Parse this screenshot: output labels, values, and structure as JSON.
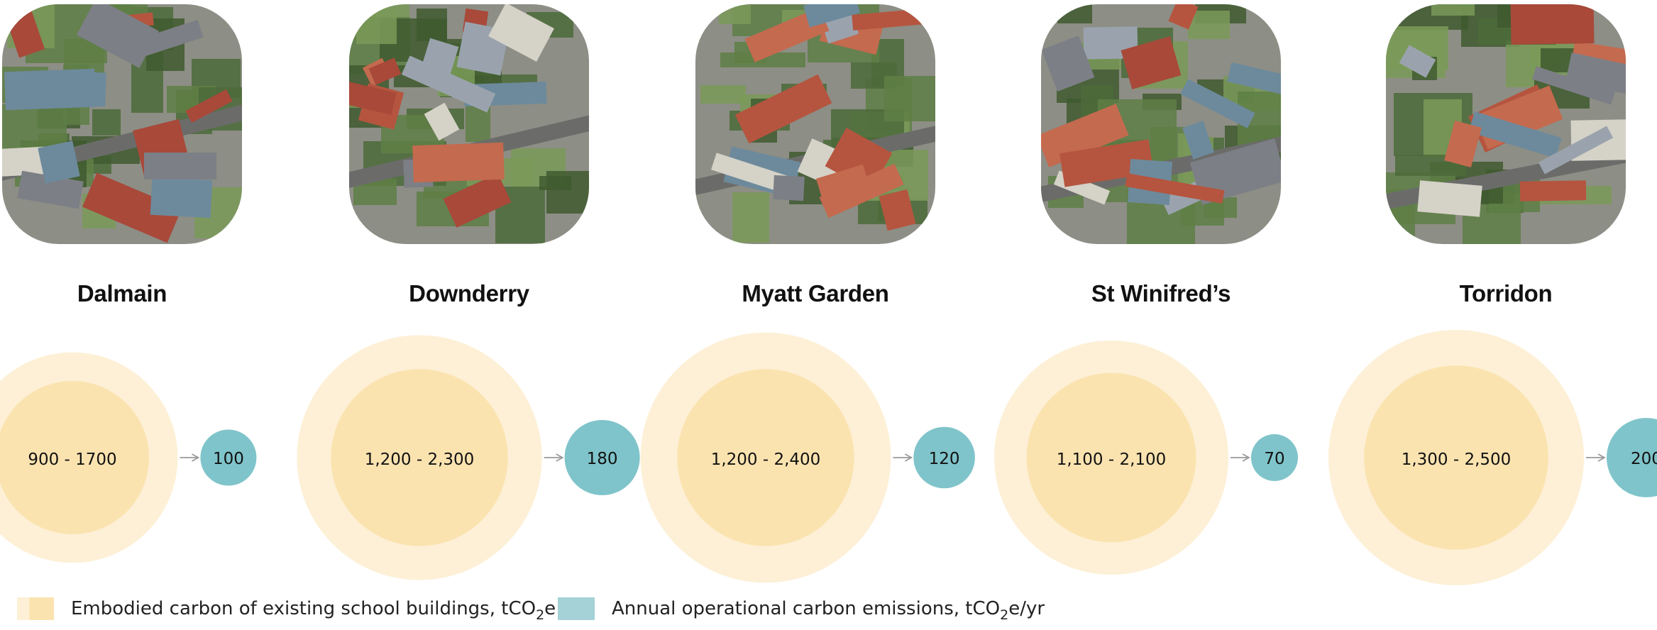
{
  "chart_data": {
    "type": "bubble",
    "schools": [
      {
        "name": "Dalmain",
        "embodied_label": "900 - 1700",
        "embodied_low": 900,
        "embodied_high": 1700,
        "operational_label": "100",
        "operational": 100
      },
      {
        "name": "Downderry",
        "embodied_label": "1,200 - 2,300",
        "embodied_low": 1200,
        "embodied_high": 2300,
        "operational_label": "180",
        "operational": 180
      },
      {
        "name": "Myatt Garden",
        "embodied_label": "1,200 - 2,400",
        "embodied_low": 1200,
        "embodied_high": 2400,
        "operational_label": "120",
        "operational": 120
      },
      {
        "name": "St Winifred’s",
        "embodied_label": "1,100 - 2,100",
        "embodied_low": 1100,
        "embodied_high": 2100,
        "operational_label": "70",
        "operational": 70
      },
      {
        "name": "Torridon",
        "embodied_label": "1,300 - 2,500",
        "embodied_low": 1300,
        "embodied_high": 2500,
        "operational_label": "200",
        "operational": 200
      }
    ],
    "legend": {
      "embodied": {
        "text": "Embodied carbon of existing school buildings, tCO",
        "sub": "2",
        "suffix": "e"
      },
      "operational": {
        "text": "Annual operational carbon emissions, tCO",
        "sub": "2",
        "suffix": "e/yr"
      }
    },
    "colors": {
      "embodied_high": "#fdf0d6",
      "embodied_low": "#fbe3b0",
      "operational": "#7fc4ca",
      "arrow": "#9a9a9a"
    }
  },
  "photos": [
    {
      "alt": "Aerial photo of Dalmain school"
    },
    {
      "alt": "Aerial photo of Downderry school"
    },
    {
      "alt": "Aerial photo of Myatt Garden school"
    },
    {
      "alt": "Aerial photo of St Winifred’s school"
    },
    {
      "alt": "Aerial photo of Torridon school"
    }
  ]
}
